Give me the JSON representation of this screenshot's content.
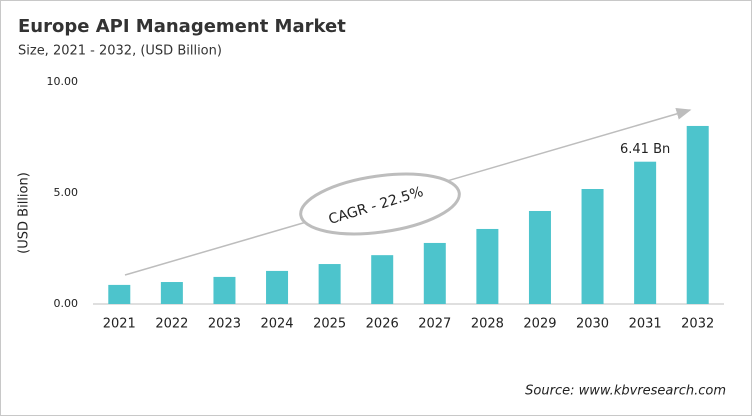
{
  "chart_data": {
    "type": "bar",
    "title": "Europe API Management Market",
    "subtitle": "Size, 2021 - 2032, (USD Billion)",
    "y_label": "(USD Billion)",
    "source": "Source: www.kbvresearch.com",
    "annotation": "CAGR - 22.5%",
    "categories": [
      "2021",
      "2022",
      "2023",
      "2024",
      "2025",
      "2026",
      "2027",
      "2028",
      "2029",
      "2030",
      "2031",
      "2032"
    ],
    "values": [
      0.86,
      0.99,
      1.22,
      1.49,
      1.8,
      2.2,
      2.75,
      3.38,
      4.19,
      5.18,
      6.41,
      8.02
    ],
    "value_labels": [
      null,
      null,
      null,
      null,
      null,
      null,
      null,
      null,
      null,
      null,
      "6.41 Bn",
      null
    ],
    "color": "#4dc4cc",
    "ylim": [
      0,
      10
    ],
    "yticks": [
      {
        "value": 0,
        "label": "0.00"
      },
      {
        "value": 5,
        "label": "5.00"
      },
      {
        "value": 10,
        "label": "10.00"
      }
    ],
    "grid": false
  }
}
